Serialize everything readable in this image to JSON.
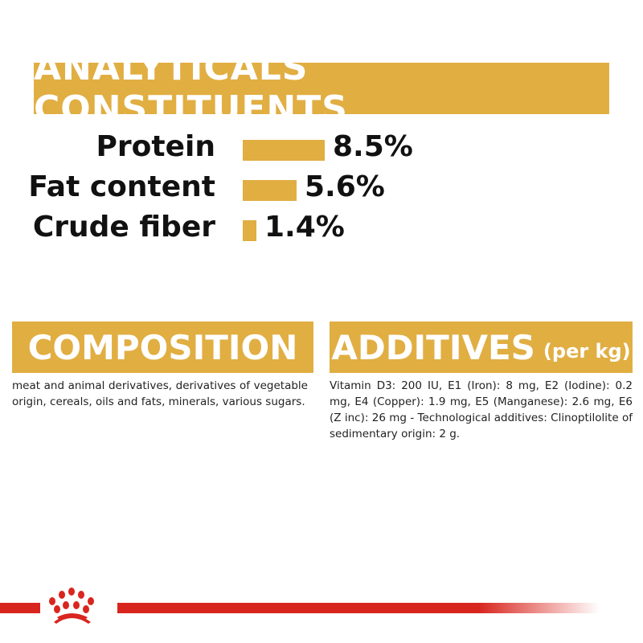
{
  "analytics": {
    "title": "ANALYTICALS CONSTITUENTS",
    "max_percent": 8.5,
    "items": [
      {
        "label": "Protein",
        "value": "8.5%",
        "percent": 8.5
      },
      {
        "label": "Fat content",
        "value": "5.6%",
        "percent": 5.6
      },
      {
        "label": "Crude fiber",
        "value": "1.4%",
        "percent": 1.4
      }
    ]
  },
  "composition": {
    "title": "COMPOSITION",
    "text": "meat and animal derivatives, derivatives of vegetable origin, cereals, oils and fats, minerals, various sugars."
  },
  "additives": {
    "title": "ADDITIVES",
    "unit": "(per kg)",
    "text": "Vitamin D3: 200 IU, E1 (Iron): 8 mg, E2 (Iodine): 0.2 mg, E4 (Copper): 1.9 mg, E5 (Manganese): 2.6 mg, E6 (Z inc): 26 mg - Technological additives: Clinoptilolite of sedimentary origin: 2 g."
  },
  "colors": {
    "accent": "#E1AE42",
    "brand_red": "#D8261F"
  },
  "logo": {
    "icon": "crown-icon"
  }
}
